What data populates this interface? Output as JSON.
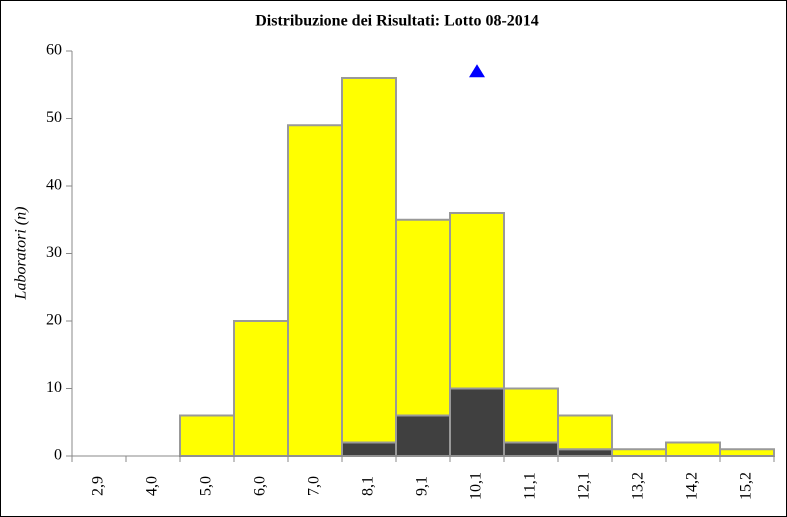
{
  "chart_data": {
    "type": "stacked_bar",
    "title": "Distribuzione dei Risultati: Lotto 08-2014",
    "ylabel": "Laboratori (n)",
    "categories": [
      "2,9",
      "4,0",
      "5,0",
      "6,0",
      "7,0",
      "8,1",
      "9,1",
      "10,1",
      "11,1",
      "12,1",
      "13,2",
      "14,2",
      "15,2"
    ],
    "series": [
      {
        "color": "#404040",
        "values": [
          0,
          0,
          0,
          0,
          0,
          2,
          6,
          10,
          2,
          1,
          0,
          0,
          0
        ]
      },
      {
        "color": "#ffff00",
        "values": [
          0,
          0,
          6,
          20,
          49,
          54,
          29,
          26,
          8,
          5,
          1,
          2,
          1
        ]
      }
    ],
    "marker": {
      "x": "10,1",
      "y": 57,
      "color": "#0000ff"
    },
    "ylim": [
      0,
      60
    ],
    "yticks": [
      0,
      10,
      20,
      30,
      40,
      50,
      60
    ]
  }
}
